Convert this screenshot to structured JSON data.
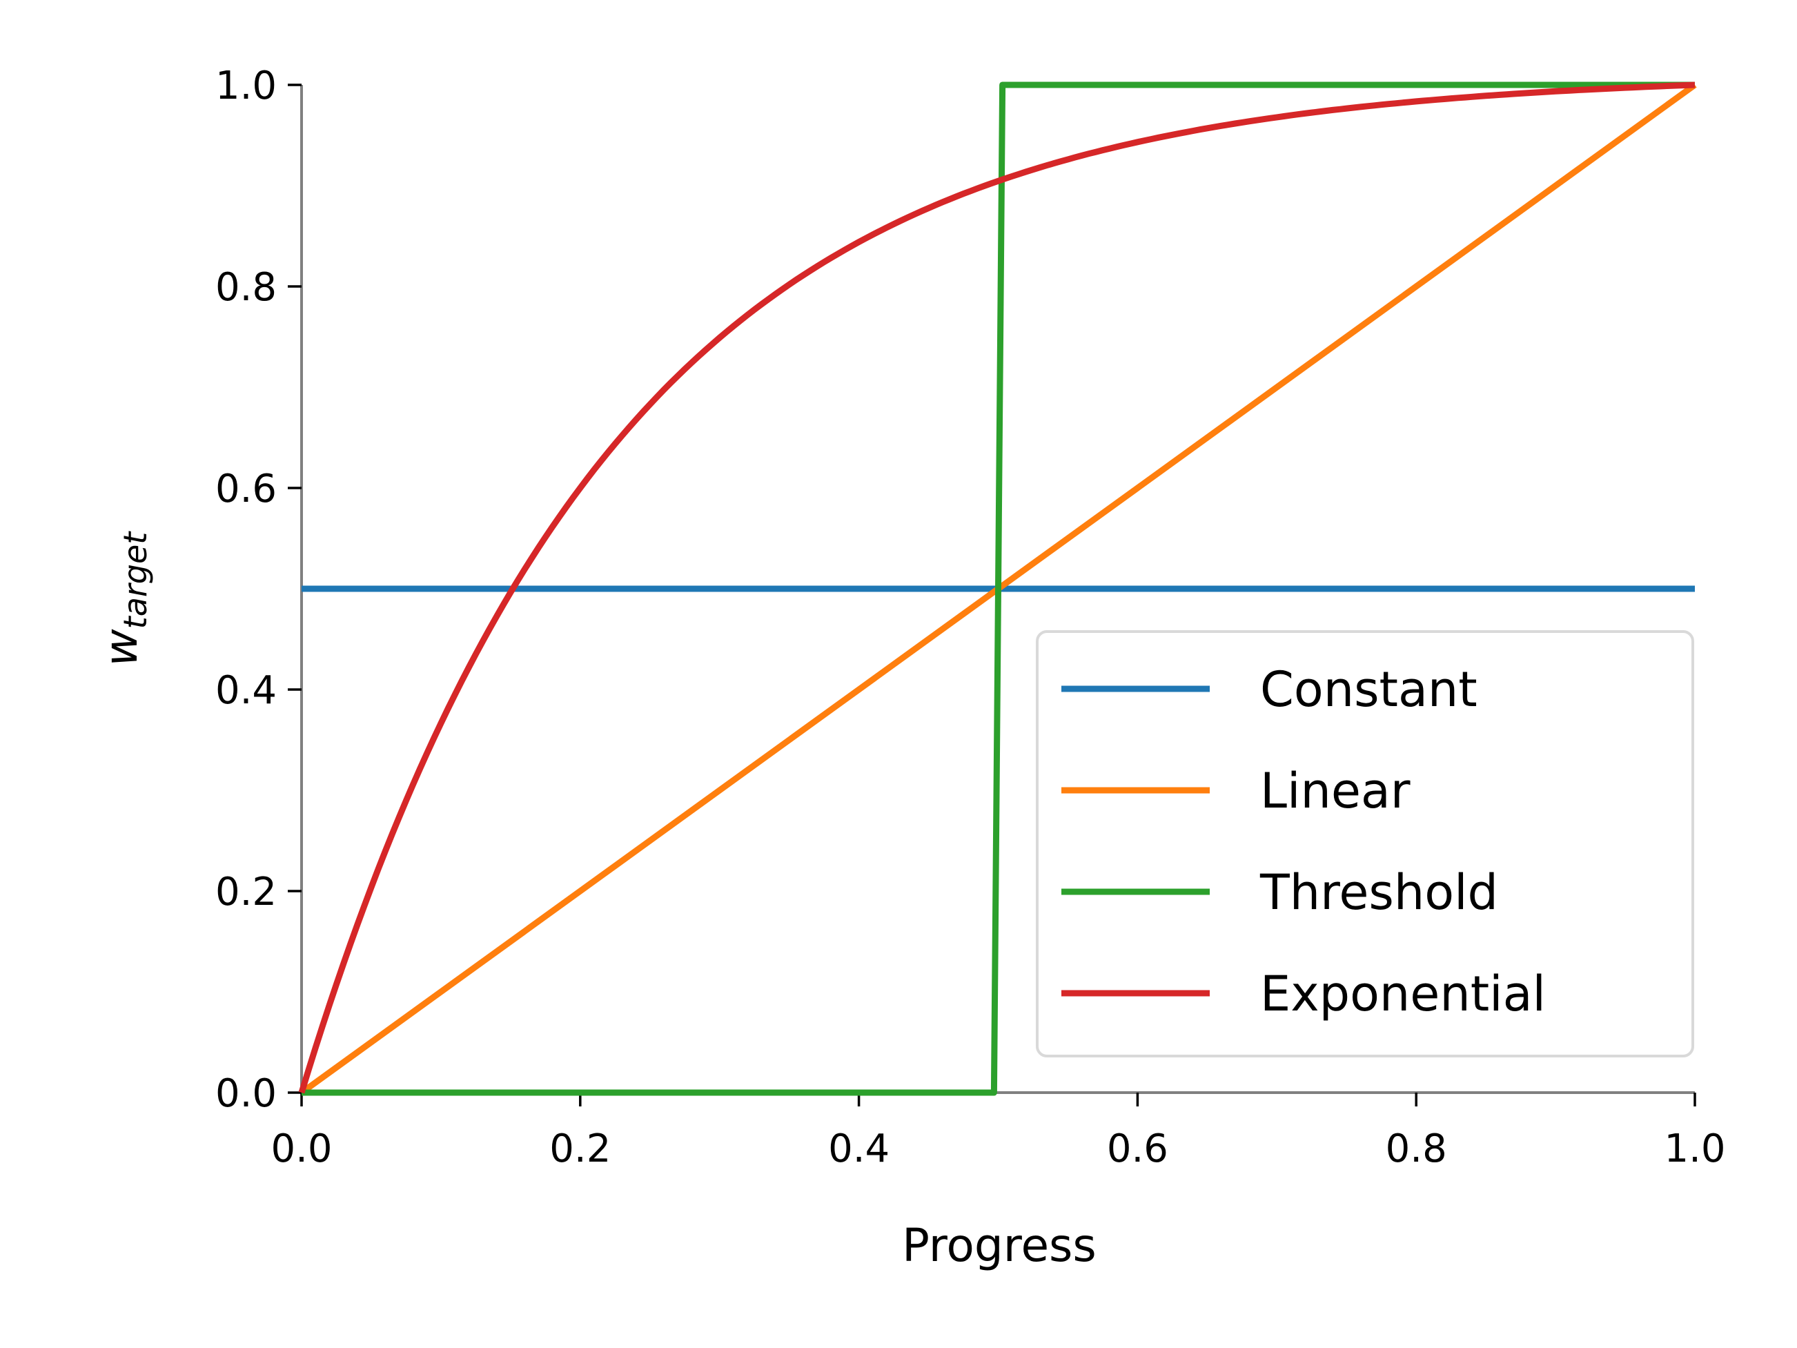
{
  "chart_data": {
    "type": "line",
    "title": "",
    "xlabel": "Progress",
    "ylabel_main": "w",
    "ylabel_sub": "target",
    "xlim": [
      0.0,
      1.0
    ],
    "ylim": [
      0.0,
      1.0
    ],
    "xticks": [
      "0.0",
      "0.2",
      "0.4",
      "0.6",
      "0.8",
      "1.0"
    ],
    "yticks": [
      "0.0",
      "0.2",
      "0.4",
      "0.6",
      "0.8",
      "1.0"
    ],
    "grid": false,
    "legend_position": "lower-right",
    "series": [
      {
        "name": "Constant",
        "color": "#1f77b4",
        "x": [
          0.0,
          1.0
        ],
        "y": [
          0.5,
          0.5
        ]
      },
      {
        "name": "Linear",
        "color": "#ff7f0e",
        "x": [
          0.0,
          1.0
        ],
        "y": [
          0.0,
          1.0
        ]
      },
      {
        "name": "Threshold",
        "color": "#2ca02c",
        "x": [
          0.0,
          0.497,
          0.503,
          1.0
        ],
        "y": [
          0.0,
          0.0,
          1.0,
          1.0
        ]
      },
      {
        "name": "Exponential",
        "color": "#d62728",
        "x": [
          0.0,
          0.05,
          0.1,
          0.15,
          0.2,
          0.25,
          0.3,
          0.35,
          0.4,
          0.45,
          0.5,
          0.55,
          0.6,
          0.65,
          0.7,
          0.75,
          0.8,
          0.85,
          0.9,
          0.95,
          1.0
        ],
        "y": [
          0.0,
          0.2,
          0.36,
          0.488,
          0.59,
          0.672,
          0.738,
          0.79,
          0.832,
          0.866,
          0.893,
          0.914,
          0.931,
          0.945,
          0.956,
          0.965,
          0.972,
          0.978,
          0.982,
          0.986,
          1.0
        ]
      }
    ]
  }
}
